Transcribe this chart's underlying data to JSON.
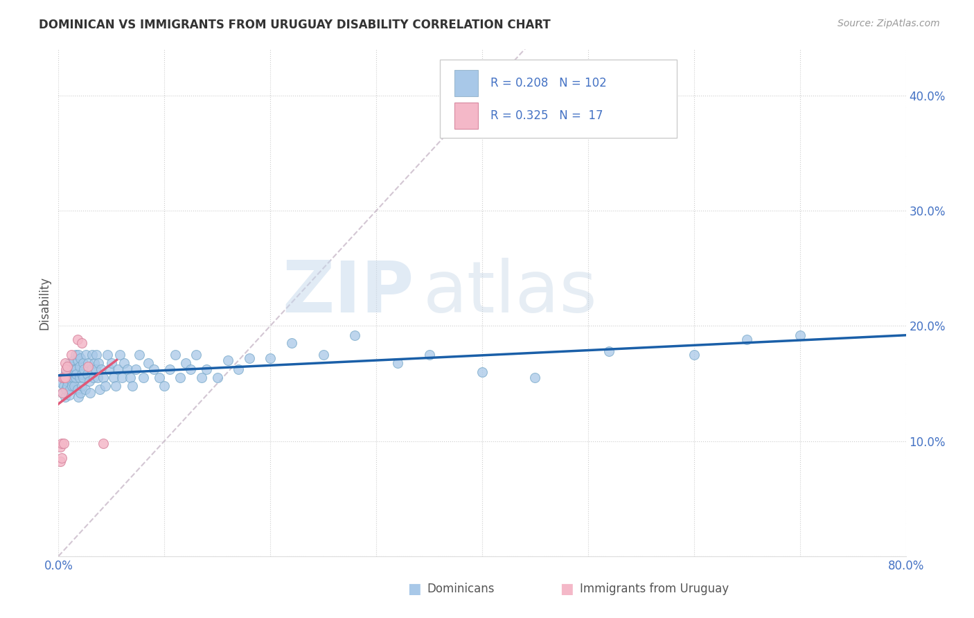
{
  "title": "DOMINICAN VS IMMIGRANTS FROM URUGUAY DISABILITY CORRELATION CHART",
  "source": "Source: ZipAtlas.com",
  "ylabel": "Disability",
  "x_min": 0.0,
  "x_max": 0.8,
  "y_min": 0.0,
  "y_max": 0.44,
  "color_blue": "#a8c8e8",
  "color_pink": "#f4b8c8",
  "color_blue_line": "#1a5fa8",
  "color_pink_line": "#e05878",
  "color_ref_line": "#c8b8c8",
  "watermark_zip": "ZIP",
  "watermark_atlas": "atlas",
  "dominicans_x": [
    0.003,
    0.004,
    0.005,
    0.006,
    0.006,
    0.007,
    0.007,
    0.008,
    0.008,
    0.009,
    0.009,
    0.01,
    0.01,
    0.01,
    0.011,
    0.011,
    0.012,
    0.012,
    0.013,
    0.013,
    0.014,
    0.014,
    0.015,
    0.015,
    0.016,
    0.016,
    0.017,
    0.017,
    0.018,
    0.018,
    0.019,
    0.019,
    0.02,
    0.02,
    0.021,
    0.021,
    0.022,
    0.022,
    0.023,
    0.023,
    0.024,
    0.025,
    0.026,
    0.027,
    0.028,
    0.029,
    0.03,
    0.031,
    0.032,
    0.033,
    0.034,
    0.035,
    0.036,
    0.037,
    0.038,
    0.039,
    0.04,
    0.042,
    0.044,
    0.046,
    0.048,
    0.05,
    0.052,
    0.054,
    0.056,
    0.058,
    0.06,
    0.062,
    0.065,
    0.068,
    0.07,
    0.073,
    0.076,
    0.08,
    0.085,
    0.09,
    0.095,
    0.1,
    0.105,
    0.11,
    0.115,
    0.12,
    0.125,
    0.13,
    0.135,
    0.14,
    0.15,
    0.16,
    0.17,
    0.18,
    0.2,
    0.22,
    0.25,
    0.28,
    0.32,
    0.35,
    0.4,
    0.45,
    0.52,
    0.6,
    0.65,
    0.7
  ],
  "dominicans_y": [
    0.15,
    0.142,
    0.148,
    0.138,
    0.155,
    0.145,
    0.16,
    0.152,
    0.148,
    0.158,
    0.162,
    0.14,
    0.155,
    0.168,
    0.145,
    0.158,
    0.152,
    0.162,
    0.148,
    0.165,
    0.155,
    0.17,
    0.148,
    0.162,
    0.155,
    0.175,
    0.162,
    0.158,
    0.145,
    0.17,
    0.138,
    0.175,
    0.155,
    0.165,
    0.142,
    0.172,
    0.158,
    0.148,
    0.168,
    0.155,
    0.162,
    0.145,
    0.175,
    0.158,
    0.168,
    0.152,
    0.142,
    0.162,
    0.175,
    0.155,
    0.168,
    0.162,
    0.175,
    0.155,
    0.168,
    0.145,
    0.162,
    0.155,
    0.148,
    0.175,
    0.162,
    0.168,
    0.155,
    0.148,
    0.162,
    0.175,
    0.155,
    0.168,
    0.162,
    0.155,
    0.148,
    0.162,
    0.175,
    0.155,
    0.168,
    0.162,
    0.155,
    0.148,
    0.162,
    0.175,
    0.155,
    0.168,
    0.162,
    0.175,
    0.155,
    0.162,
    0.155,
    0.17,
    0.162,
    0.172,
    0.172,
    0.185,
    0.175,
    0.192,
    0.168,
    0.175,
    0.16,
    0.155,
    0.178,
    0.175,
    0.188,
    0.192
  ],
  "uruguay_x": [
    0.002,
    0.002,
    0.003,
    0.003,
    0.004,
    0.004,
    0.005,
    0.005,
    0.006,
    0.006,
    0.007,
    0.008,
    0.012,
    0.018,
    0.022,
    0.028,
    0.042
  ],
  "uruguay_y": [
    0.095,
    0.082,
    0.098,
    0.085,
    0.155,
    0.142,
    0.098,
    0.155,
    0.168,
    0.155,
    0.162,
    0.165,
    0.175,
    0.188,
    0.185,
    0.165,
    0.098
  ]
}
